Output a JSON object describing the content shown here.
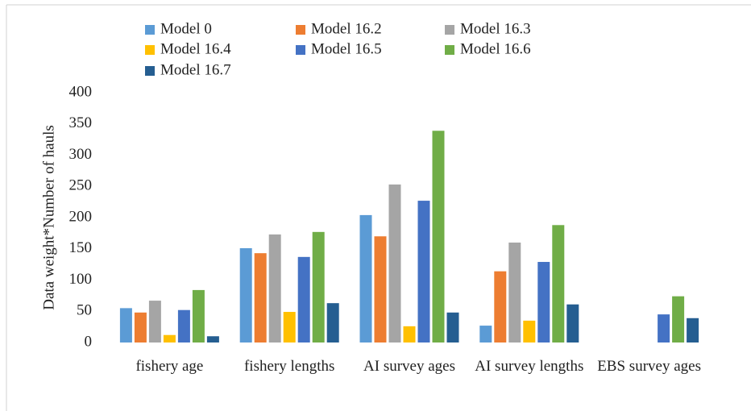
{
  "chart_data": {
    "type": "bar",
    "y_label": "Data weight*Number of hauls",
    "categories": [
      "fishery age",
      "fishery lengths",
      "AI survey ages",
      "AI survey lengths",
      "EBS survey ages"
    ],
    "series": [
      {
        "name": "Model 0",
        "color": "#5b9bd5",
        "values": [
          55,
          151,
          204,
          27,
          null
        ]
      },
      {
        "name": "Model 16.2",
        "color": "#ed7d31",
        "values": [
          48,
          143,
          170,
          114,
          null
        ]
      },
      {
        "name": "Model 16.3",
        "color": "#a5a5a5",
        "values": [
          67,
          173,
          253,
          160,
          null
        ]
      },
      {
        "name": "Model 16.4",
        "color": "#ffc000",
        "values": [
          12,
          49,
          26,
          35,
          null
        ]
      },
      {
        "name": "Model 16.5",
        "color": "#4472c4",
        "values": [
          52,
          137,
          227,
          129,
          45
        ]
      },
      {
        "name": "Model 16.6",
        "color": "#70ad47",
        "values": [
          84,
          177,
          339,
          188,
          74
        ]
      },
      {
        "name": "Model 16.7",
        "color": "#255e91",
        "values": [
          10,
          63,
          48,
          61,
          39
        ]
      }
    ],
    "ylim": [
      0,
      400
    ],
    "yticks": [
      0,
      50,
      100,
      150,
      200,
      250,
      300,
      350,
      400
    ],
    "grid": false
  }
}
